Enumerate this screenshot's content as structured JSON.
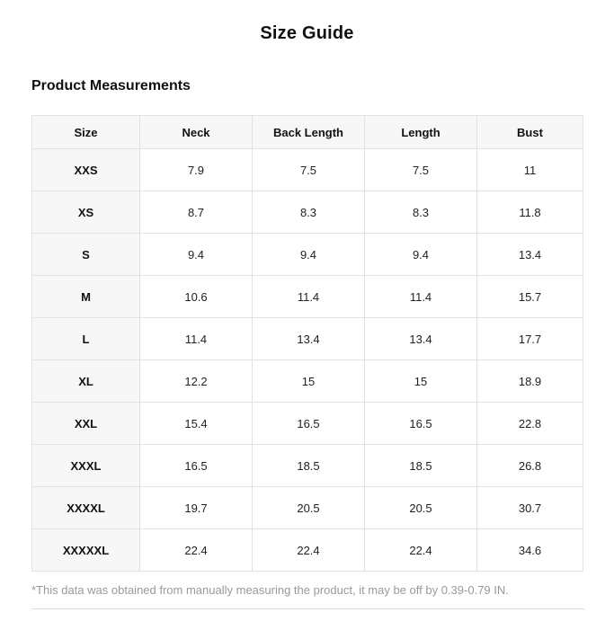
{
  "page": {
    "title": "Size Guide",
    "section_heading": "Product Measurements",
    "footnote": "*This data was obtained from manually measuring the product, it may be off by 0.39-0.79 IN."
  },
  "table": {
    "columns": [
      "Size",
      "Neck",
      "Back Length",
      "Length",
      "Bust"
    ],
    "rows": [
      {
        "size": "XXS",
        "values": [
          "7.9",
          "7.5",
          "7.5",
          "11"
        ]
      },
      {
        "size": "XS",
        "values": [
          "8.7",
          "8.3",
          "8.3",
          "11.8"
        ]
      },
      {
        "size": "S",
        "values": [
          "9.4",
          "9.4",
          "9.4",
          "13.4"
        ]
      },
      {
        "size": "M",
        "values": [
          "10.6",
          "11.4",
          "11.4",
          "15.7"
        ]
      },
      {
        "size": "L",
        "values": [
          "11.4",
          "13.4",
          "13.4",
          "17.7"
        ]
      },
      {
        "size": "XL",
        "values": [
          "12.2",
          "15",
          "15",
          "18.9"
        ]
      },
      {
        "size": "XXL",
        "values": [
          "15.4",
          "16.5",
          "16.5",
          "22.8"
        ]
      },
      {
        "size": "XXXL",
        "values": [
          "16.5",
          "18.5",
          "18.5",
          "26.8"
        ]
      },
      {
        "size": "XXXXL",
        "values": [
          "19.7",
          "20.5",
          "20.5",
          "30.7"
        ]
      },
      {
        "size": "XXXXXL",
        "values": [
          "22.4",
          "22.4",
          "22.4",
          "34.6"
        ]
      }
    ],
    "units": "IN"
  },
  "colors": {
    "header_background": "#f7f7f7",
    "border": "#e2e2e2",
    "footnote_text": "#999999",
    "body_text": "#222222",
    "heading_text": "#111111",
    "divider": "#dddddd"
  }
}
